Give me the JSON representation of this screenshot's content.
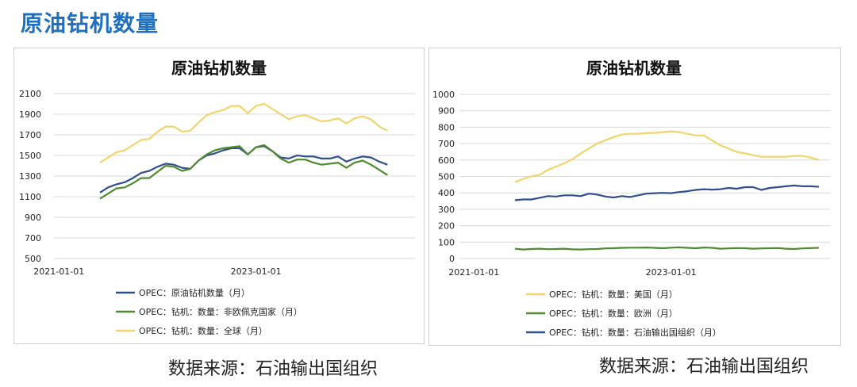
{
  "page": {
    "title": "原油钻机数量",
    "source_left": "数据来源：石油输出国组织",
    "source_right": "数据来源：石油输出国组织"
  },
  "colors": {
    "blue": "#2f4f8f",
    "green": "#4e8a2e",
    "yellow": "#f2d46b",
    "title_blue": "#1f6fbf",
    "grid": "#d9d9d9"
  },
  "chart_data": [
    {
      "type": "line",
      "title": "原油钻机数量",
      "xlabel": "",
      "ylabel": "",
      "ylim": [
        500,
        2100
      ],
      "yticks": [
        500,
        700,
        900,
        1100,
        1300,
        1500,
        1700,
        1900,
        2100
      ],
      "x_tick_labels": [
        "2021-01-01",
        "2023-01-01"
      ],
      "x_tick_index": [
        -5,
        19
      ],
      "grid": true,
      "legend_position": "bottom",
      "series": [
        {
          "name": "OPEC：原油钻机数量（月）",
          "color": "#2f4f8f",
          "values": [
            1140,
            1190,
            1220,
            1240,
            1280,
            1330,
            1350,
            1390,
            1420,
            1410,
            1380,
            1370,
            1450,
            1500,
            1520,
            1550,
            1570,
            1570,
            1510,
            1580,
            1590,
            1540,
            1480,
            1470,
            1500,
            1490,
            1490,
            1470,
            1470,
            1490,
            1440,
            1470,
            1490,
            1480,
            1440,
            1410
          ]
        },
        {
          "name": "OPEC：钻机：数量：非欧佩克国家（月）",
          "color": "#4e8a2e",
          "values": [
            1080,
            1130,
            1180,
            1190,
            1230,
            1280,
            1280,
            1340,
            1400,
            1390,
            1350,
            1370,
            1450,
            1510,
            1550,
            1570,
            1580,
            1590,
            1510,
            1580,
            1600,
            1540,
            1470,
            1430,
            1460,
            1460,
            1430,
            1410,
            1420,
            1430,
            1380,
            1430,
            1450,
            1410,
            1360,
            1310
          ]
        },
        {
          "name": "OPEC：钻机：数量：全球（月）",
          "color": "#f2d46b",
          "values": [
            1430,
            1480,
            1530,
            1550,
            1600,
            1650,
            1660,
            1730,
            1780,
            1780,
            1730,
            1740,
            1820,
            1890,
            1920,
            1940,
            1980,
            1980,
            1910,
            1980,
            2000,
            1950,
            1900,
            1850,
            1880,
            1890,
            1860,
            1830,
            1840,
            1860,
            1810,
            1860,
            1880,
            1850,
            1780,
            1740
          ]
        }
      ]
    },
    {
      "type": "line",
      "title": "原油钻机数量",
      "xlabel": "",
      "ylabel": "",
      "ylim": [
        0,
        1000
      ],
      "yticks": [
        0,
        100,
        200,
        300,
        400,
        500,
        600,
        700,
        800,
        900,
        1000
      ],
      "x_tick_labels": [
        "2021-01-01",
        "2023-01-01"
      ],
      "x_tick_index": [
        -5,
        19
      ],
      "grid": true,
      "legend_position": "bottom",
      "series": [
        {
          "name": "OPEC：钻机：数量：美国（月）",
          "color": "#f2d46b",
          "values": [
            465,
            485,
            500,
            510,
            540,
            560,
            580,
            605,
            640,
            670,
            700,
            720,
            740,
            755,
            760,
            760,
            765,
            765,
            770,
            775,
            770,
            760,
            750,
            750,
            720,
            690,
            670,
            650,
            640,
            630,
            620,
            620,
            620,
            620,
            625,
            625,
            615,
            600
          ]
        },
        {
          "name": "OPEC：钻机：数量：欧洲（月）",
          "color": "#4e8a2e",
          "values": [
            60,
            55,
            58,
            60,
            57,
            58,
            60,
            56,
            55,
            57,
            58,
            62,
            63,
            65,
            66,
            66,
            67,
            65,
            63,
            66,
            68,
            65,
            63,
            67,
            65,
            60,
            62,
            64,
            63,
            60,
            62,
            63,
            64,
            60,
            58,
            62,
            64,
            65
          ]
        },
        {
          "name": "OPEC：钻机：数量：石油输出国组织（月）",
          "color": "#2f4f8f",
          "values": [
            355,
            360,
            360,
            370,
            380,
            378,
            385,
            385,
            380,
            395,
            390,
            378,
            372,
            380,
            375,
            385,
            395,
            398,
            400,
            398,
            405,
            410,
            418,
            422,
            420,
            422,
            430,
            425,
            435,
            435,
            418,
            430,
            435,
            440,
            445,
            440,
            440,
            437
          ]
        }
      ]
    }
  ]
}
